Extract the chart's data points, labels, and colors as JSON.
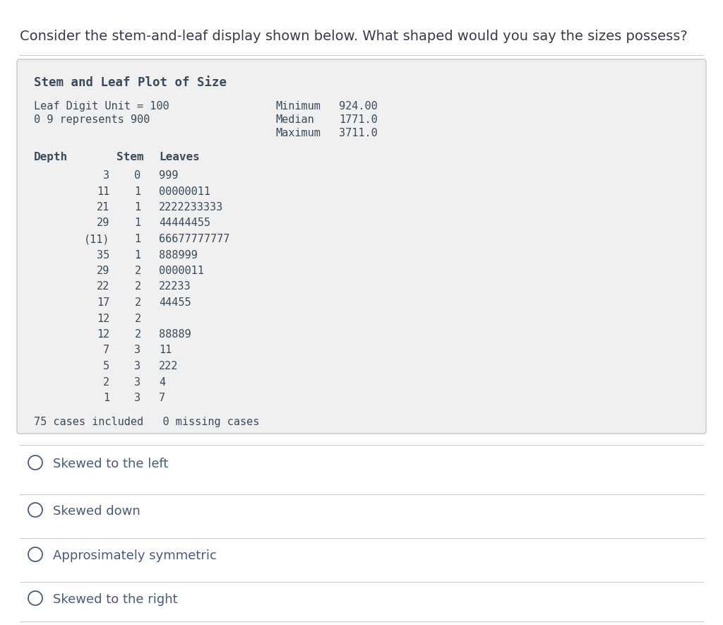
{
  "title": "Consider the stem-and-leaf display shown below. What shaped would you say the sizes possess?",
  "box_title": "Stem and Leaf Plot of Size",
  "leaf_digit_unit": "Leaf Digit Unit = 100",
  "represents": "0 9 represents 900",
  "minimum_label": "Minimum",
  "minimum_value": "924.00",
  "median_label": "Median",
  "median_value": "1771.0",
  "maximum_label": "Maximum",
  "maximum_value": "3711.0",
  "col_headers": [
    "Depth",
    "Stem",
    "Leaves"
  ],
  "rows": [
    [
      "3",
      "0",
      "999"
    ],
    [
      "11",
      "1",
      "00000011"
    ],
    [
      "21",
      "1",
      "2222233333"
    ],
    [
      "29",
      "1",
      "44444455"
    ],
    [
      "(11)",
      "1",
      "66677777777"
    ],
    [
      "35",
      "1",
      "888999"
    ],
    [
      "29",
      "2",
      "0000011"
    ],
    [
      "22",
      "2",
      "22233"
    ],
    [
      "17",
      "2",
      "44455"
    ],
    [
      "12",
      "2",
      ""
    ],
    [
      "12",
      "2",
      "88889"
    ],
    [
      "7",
      "3",
      "11"
    ],
    [
      "5",
      "3",
      "222"
    ],
    [
      "2",
      "3",
      "4"
    ],
    [
      "1",
      "3",
      "7"
    ]
  ],
  "footer": "75 cases included   0 missing cases",
  "options": [
    "Skewed to the left",
    "Skewed down",
    "Approsimately symmetric",
    "Skewed to the right"
  ],
  "bg_color": "#ffffff",
  "box_bg_color": "#f0f0f0",
  "title_color": "#3a3a4a",
  "text_color": "#3a4a5a",
  "option_color": "#4a5a7a",
  "line_color": "#cccccc",
  "box_border_color": "#c8c8c8"
}
